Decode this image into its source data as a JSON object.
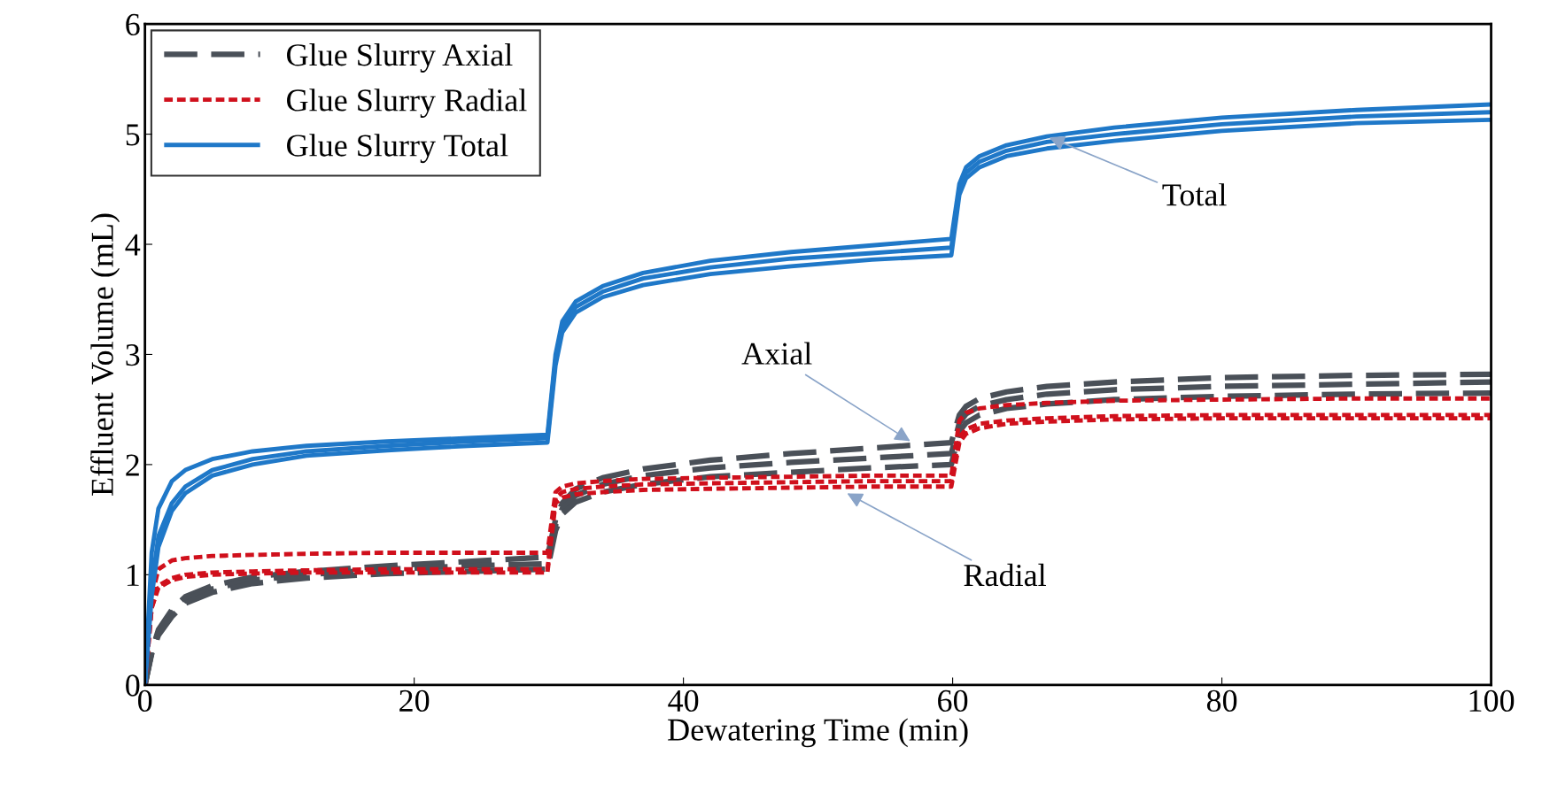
{
  "chart_data": {
    "type": "line",
    "xlabel": "Dewatering Time (min)",
    "ylabel": "Effluent Volume (mL)",
    "x": [
      0,
      0.5,
      1,
      2,
      3,
      5,
      8,
      12,
      18,
      24,
      29.9,
      30.5,
      31,
      32,
      34,
      37,
      42,
      48,
      54,
      59.9,
      60.5,
      61,
      62,
      64,
      67,
      72,
      80,
      90,
      100
    ],
    "xlim": [
      0,
      100
    ],
    "ylim": [
      0,
      6
    ],
    "xticks": [
      0,
      20,
      40,
      60,
      80,
      100
    ],
    "yticks": [
      0,
      1,
      2,
      3,
      4,
      5,
      6
    ],
    "grid": false,
    "legend": "top left",
    "series": [
      {
        "name": "Glue Slurry Axial",
        "color": "#4a5058",
        "line_style": "dashed",
        "values": [
          0,
          0.3,
          0.5,
          0.68,
          0.8,
          0.9,
          0.98,
          1.03,
          1.08,
          1.12,
          1.16,
          1.5,
          1.65,
          1.78,
          1.88,
          1.96,
          2.04,
          2.1,
          2.15,
          2.2,
          2.45,
          2.53,
          2.6,
          2.66,
          2.71,
          2.75,
          2.79,
          2.81,
          2.82
        ]
      },
      {
        "color": "#4a5058",
        "line_style": "dashed",
        "values": [
          0,
          0.3,
          0.48,
          0.65,
          0.77,
          0.87,
          0.95,
          1.0,
          1.05,
          1.08,
          1.1,
          1.45,
          1.6,
          1.72,
          1.82,
          1.9,
          1.97,
          2.02,
          2.06,
          2.1,
          2.38,
          2.46,
          2.53,
          2.59,
          2.64,
          2.68,
          2.71,
          2.73,
          2.75
        ]
      },
      {
        "color": "#4a5058",
        "line_style": "dashed",
        "values": [
          0,
          0.28,
          0.45,
          0.62,
          0.74,
          0.84,
          0.92,
          0.97,
          1.01,
          1.03,
          1.05,
          1.4,
          1.55,
          1.66,
          1.75,
          1.82,
          1.89,
          1.93,
          1.97,
          2.0,
          2.3,
          2.38,
          2.45,
          2.51,
          2.55,
          2.59,
          2.62,
          2.64,
          2.65
        ]
      },
      {
        "name": "Glue Slurry Radial",
        "color": "#d0101c",
        "line_style": "dotted",
        "values": [
          0,
          0.8,
          1.05,
          1.13,
          1.15,
          1.17,
          1.18,
          1.19,
          1.2,
          1.2,
          1.2,
          1.75,
          1.8,
          1.83,
          1.85,
          1.87,
          1.88,
          1.89,
          1.9,
          1.9,
          2.4,
          2.47,
          2.51,
          2.54,
          2.56,
          2.58,
          2.59,
          2.6,
          2.6
        ]
      },
      {
        "color": "#d0101c",
        "line_style": "dotted",
        "values": [
          0,
          0.7,
          0.9,
          0.97,
          1.0,
          1.02,
          1.03,
          1.04,
          1.05,
          1.05,
          1.05,
          1.7,
          1.75,
          1.78,
          1.8,
          1.82,
          1.83,
          1.84,
          1.85,
          1.85,
          2.25,
          2.32,
          2.37,
          2.4,
          2.42,
          2.44,
          2.45,
          2.45,
          2.45
        ]
      },
      {
        "color": "#d0101c",
        "line_style": "dotted",
        "values": [
          0,
          0.7,
          0.88,
          0.95,
          0.98,
          1.0,
          1.01,
          1.02,
          1.02,
          1.02,
          1.02,
          1.65,
          1.7,
          1.73,
          1.75,
          1.77,
          1.78,
          1.79,
          1.8,
          1.8,
          2.2,
          2.28,
          2.33,
          2.37,
          2.39,
          2.41,
          2.42,
          2.42,
          2.42
        ]
      },
      {
        "name": "Glue Slurry Total",
        "color": "#1f78c8",
        "line_style": "solid",
        "values": [
          0,
          1.2,
          1.6,
          1.85,
          1.95,
          2.05,
          2.12,
          2.17,
          2.21,
          2.24,
          2.27,
          3.0,
          3.3,
          3.48,
          3.62,
          3.74,
          3.85,
          3.93,
          3.99,
          4.05,
          4.55,
          4.7,
          4.8,
          4.9,
          4.98,
          5.06,
          5.15,
          5.22,
          5.27
        ]
      },
      {
        "color": "#1f78c8",
        "line_style": "solid",
        "values": [
          0,
          0.9,
          1.35,
          1.65,
          1.8,
          1.95,
          2.05,
          2.12,
          2.17,
          2.21,
          2.24,
          2.95,
          3.25,
          3.43,
          3.57,
          3.69,
          3.79,
          3.87,
          3.92,
          3.97,
          4.5,
          4.65,
          4.75,
          4.85,
          4.93,
          5.0,
          5.09,
          5.16,
          5.2
        ]
      },
      {
        "color": "#1f78c8",
        "line_style": "solid",
        "values": [
          0,
          0.8,
          1.25,
          1.58,
          1.74,
          1.9,
          2.0,
          2.08,
          2.13,
          2.17,
          2.2,
          2.9,
          3.2,
          3.38,
          3.52,
          3.63,
          3.73,
          3.8,
          3.86,
          3.9,
          4.45,
          4.6,
          4.7,
          4.8,
          4.87,
          4.94,
          5.03,
          5.1,
          5.13
        ]
      }
    ],
    "annotations": [
      {
        "text": "Total",
        "x": 67,
        "y": 4.98
      },
      {
        "text": "Axial",
        "x": 57,
        "y": 2.2
      },
      {
        "text": "Radial",
        "x": 52,
        "y": 1.75
      }
    ]
  }
}
